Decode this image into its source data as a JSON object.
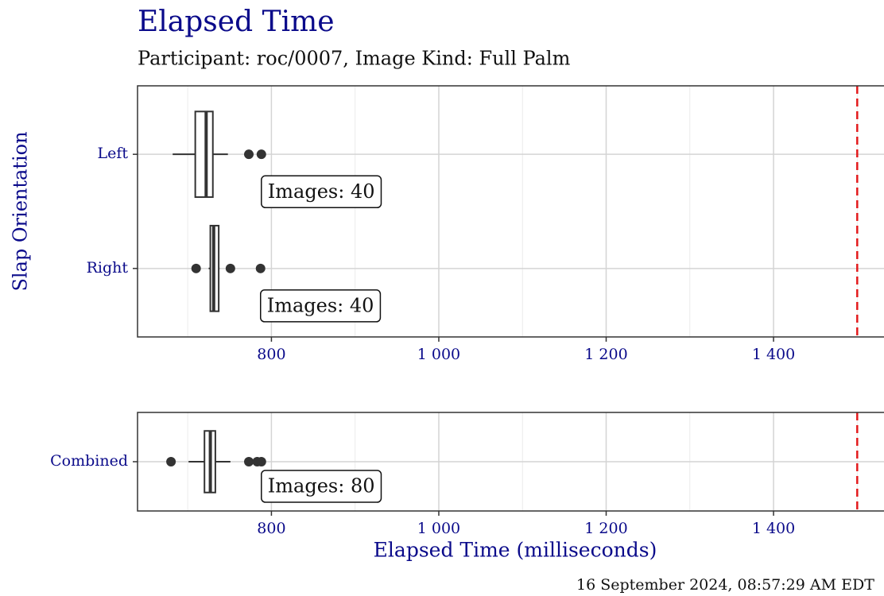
{
  "chart_data": [
    {
      "type": "box",
      "title": "Elapsed Time",
      "subtitle": "Participant: roc/0007, Image Kind: Full Palm",
      "y_label": "Slap Orientation",
      "categories": [
        "Left",
        "Right"
      ],
      "boxes": [
        {
          "whisker_low": 682,
          "q1": 709,
          "median": 722,
          "q3": 730,
          "whisker_high": 748,
          "outliers": [
            773,
            788
          ]
        },
        {
          "whisker_low": 725,
          "q1": 727,
          "median": 731,
          "q3": 737,
          "whisker_high": 738,
          "outliers": [
            710,
            751,
            787
          ]
        }
      ],
      "annotations": [
        "Images: 40",
        "Images: 40"
      ],
      "xlim": [
        640,
        1532
      ],
      "xticks": [
        800,
        {
          "value": 1000,
          "label": "1 000"
        },
        {
          "value": 1200,
          "label": "1 200"
        },
        {
          "value": 1400,
          "label": "1 400"
        }
      ],
      "minor_xticks": [
        700,
        900,
        1100,
        1300,
        1500
      ],
      "reference_line": 1500,
      "reference_color": "#e31a1c",
      "grid": true
    },
    {
      "type": "box",
      "x_label": "Elapsed Time (milliseconds)",
      "categories": [
        "Combined"
      ],
      "boxes": [
        {
          "whisker_low": 701,
          "q1": 720,
          "median": 727,
          "q3": 733,
          "whisker_high": 751,
          "outliers": [
            680,
            773,
            783,
            788
          ]
        }
      ],
      "annotations": [
        "Images: 80"
      ],
      "xlim": [
        640,
        1532
      ],
      "xticks": [
        800,
        {
          "value": 1000,
          "label": "1 000"
        },
        {
          "value": 1200,
          "label": "1 200"
        },
        {
          "value": 1400,
          "label": "1 400"
        }
      ],
      "minor_xticks": [
        700,
        900,
        1100,
        1300,
        1500
      ],
      "reference_line": 1500,
      "reference_color": "#e31a1c",
      "grid": true
    }
  ],
  "footer": "16 September 2024, 08:57:29 AM EDT"
}
